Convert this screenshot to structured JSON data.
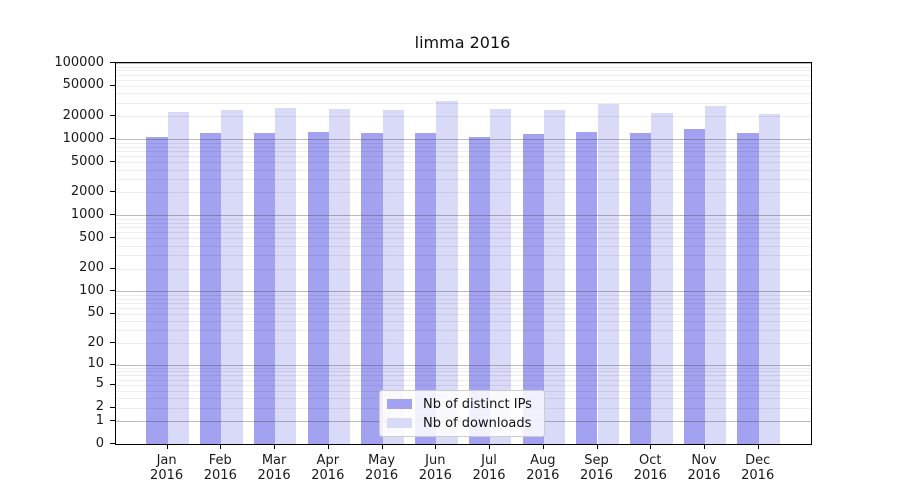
{
  "title": "limma 2016",
  "chart_data": {
    "type": "bar",
    "title": "limma 2016",
    "categories": [
      "Jan",
      "Feb",
      "Mar",
      "Apr",
      "May",
      "Jun",
      "Jul",
      "Aug",
      "Sep",
      "Oct",
      "Nov",
      "Dec"
    ],
    "year": "2016",
    "series": [
      {
        "name": "Nb of distinct IPs",
        "color": "#a2a2f1",
        "values": [
          10700,
          11900,
          12200,
          12600,
          11900,
          12000,
          10800,
          11700,
          12300,
          12000,
          13800,
          11900
        ]
      },
      {
        "name": "Nb of downloads",
        "color": "#d9d9f8",
        "values": [
          22800,
          24300,
          25800,
          24600,
          23900,
          31800,
          24600,
          24500,
          29400,
          22400,
          27700,
          21500
        ]
      }
    ],
    "y_axis": {
      "scale": "log10(1+value)",
      "tick_values": [
        100000,
        50000,
        20000,
        10000,
        5000,
        2000,
        1000,
        500,
        200,
        100,
        50,
        20,
        10,
        5,
        2,
        1,
        0
      ],
      "range_max": 100000
    },
    "x_axis": {
      "tick_label_line1": [
        "Jan",
        "Feb",
        "Mar",
        "Apr",
        "May",
        "Jun",
        "Jul",
        "Aug",
        "Sep",
        "Oct",
        "Nov",
        "Dec"
      ],
      "tick_label_line2": "2016"
    },
    "legend": {
      "position": "lower center",
      "entries": [
        "Nb of distinct IPs",
        "Nb of downloads"
      ]
    },
    "grid": {
      "minor_lines": "2-9 per decade",
      "major_lines": "powers of 10"
    }
  }
}
